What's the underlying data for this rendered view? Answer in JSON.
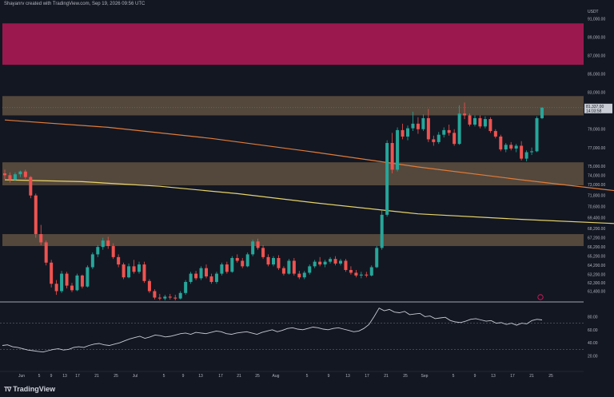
{
  "header": {
    "text": "Shayanrv created with TradingView.com, Sep 19, 2026 09:56 UTC"
  },
  "logo": {
    "mark": "T∇",
    "text": "TradingView"
  },
  "colors": {
    "bg": "#131722",
    "up": "#26a69a",
    "down": "#ef5350",
    "ma200": "#e07b39",
    "ma100": "#e6d36a",
    "rsi": "#c9ccd4",
    "supply": "#c2185b",
    "zone": "#6b5a45"
  },
  "chart_data": [
    {
      "type": "candlestick",
      "title": "",
      "currency_label": "USDT",
      "ylim": [
        60400,
        92000
      ],
      "y_ticks": [
        91000,
        89000,
        87000,
        85000,
        83000,
        79000,
        77000,
        75000,
        74000,
        73000,
        71800,
        70600,
        69400,
        68200,
        67200,
        66200,
        65200,
        64200,
        63200,
        62300,
        61400
      ],
      "y_tick_labels": [
        "91,000.00",
        "89,000.00",
        "87,000.00",
        "85,000.00",
        "83,000.00",
        "79,000.00",
        "77,000.00",
        "75,000.00",
        "74,000.00",
        "73,000.00",
        "71,800.00",
        "70,600.00",
        "69,400.00",
        "68,200.00",
        "67,200.00",
        "66,200.00",
        "65,200.00",
        "64,200.00",
        "63,200.00",
        "62,300.00",
        "61,400.00"
      ],
      "last_price_label": [
        "81,337.00",
        "14:03:58"
      ],
      "x_tick_labels": [
        "Jun",
        "5",
        "9",
        "13",
        "17",
        "21",
        "25",
        "Jul",
        "5",
        "9",
        "13",
        "17",
        "21",
        "25",
        "Aug",
        "5",
        "9",
        "13",
        "17",
        "21",
        "25",
        "Sep",
        "5",
        "9",
        "13",
        "17",
        "21",
        "25"
      ],
      "zones": [
        {
          "name": "supply zone",
          "y0": 86000,
          "y1": 90500
        },
        {
          "name": "resistance zone",
          "y0": 80500,
          "y1": 82600
        },
        {
          "name": "middle zone",
          "y0": 72900,
          "y1": 75400
        },
        {
          "name": "lower zone",
          "y0": 66300,
          "y1": 67600
        }
      ],
      "candles": [
        [
          74200,
          74600,
          73600,
          74000
        ],
        [
          74000,
          74300,
          73200,
          73500
        ],
        [
          73500,
          74300,
          73400,
          74100
        ],
        [
          74100,
          74500,
          73800,
          74400
        ],
        [
          74400,
          74600,
          73600,
          73800
        ],
        [
          73800,
          73900,
          71500,
          71800
        ],
        [
          71800,
          72000,
          67200,
          67600
        ],
        [
          67600,
          68600,
          66400,
          66700
        ],
        [
          66700,
          66900,
          64200,
          64500
        ],
        [
          64500,
          64800,
          61800,
          62200
        ],
        [
          62200,
          62600,
          61000,
          61400
        ],
        [
          61400,
          63600,
          61200,
          63300
        ],
        [
          63300,
          63500,
          61700,
          62000
        ],
        [
          62000,
          62300,
          61300,
          61500
        ],
        [
          61500,
          63300,
          61400,
          63100
        ],
        [
          63100,
          63200,
          61700,
          61900
        ],
        [
          61900,
          64200,
          61800,
          64000
        ],
        [
          64000,
          65600,
          63800,
          65400
        ],
        [
          65400,
          66400,
          65100,
          66200
        ],
        [
          66200,
          67200,
          65900,
          66900
        ],
        [
          66900,
          67300,
          66000,
          66300
        ],
        [
          66300,
          66600,
          64900,
          65100
        ],
        [
          65100,
          65400,
          64000,
          64300
        ],
        [
          64300,
          64500,
          62700,
          62900
        ],
        [
          62900,
          64400,
          62800,
          64100
        ],
        [
          64100,
          64800,
          63300,
          63500
        ],
        [
          63500,
          64600,
          63300,
          64300
        ],
        [
          64300,
          64600,
          62300,
          62500
        ],
        [
          62500,
          62700,
          61200,
          61400
        ],
        [
          61400,
          61600,
          60500,
          60700
        ],
        [
          60700,
          61100,
          60400,
          60600
        ],
        [
          60600,
          61000,
          60400,
          60800
        ],
        [
          60800,
          61100,
          60500,
          60700
        ],
        [
          60700,
          61000,
          60400,
          60600
        ],
        [
          60600,
          61400,
          60500,
          61200
        ],
        [
          61200,
          62600,
          61000,
          62400
        ],
        [
          62400,
          63500,
          62200,
          63300
        ],
        [
          63300,
          63600,
          62600,
          62800
        ],
        [
          62800,
          64100,
          62600,
          63900
        ],
        [
          63900,
          64300,
          62800,
          63000
        ],
        [
          63000,
          63300,
          62200,
          62400
        ],
        [
          62400,
          63500,
          62200,
          63300
        ],
        [
          63300,
          64500,
          63100,
          64300
        ],
        [
          64300,
          64600,
          63300,
          63500
        ],
        [
          63500,
          65200,
          63400,
          65000
        ],
        [
          65000,
          65400,
          64500,
          64700
        ],
        [
          64700,
          65000,
          63900,
          64100
        ],
        [
          64100,
          65600,
          64000,
          65400
        ],
        [
          65400,
          67000,
          65200,
          66800
        ],
        [
          66800,
          67100,
          65900,
          66100
        ],
        [
          66100,
          66400,
          64900,
          65100
        ],
        [
          65100,
          65400,
          64100,
          64300
        ],
        [
          64300,
          65200,
          64100,
          65000
        ],
        [
          65000,
          65300,
          63700,
          63900
        ],
        [
          63900,
          64100,
          63100,
          63300
        ],
        [
          63300,
          64900,
          63200,
          64700
        ],
        [
          64700,
          65000,
          63100,
          63300
        ],
        [
          63300,
          63600,
          62700,
          62900
        ],
        [
          62900,
          63600,
          62700,
          63400
        ],
        [
          63400,
          64300,
          63200,
          64100
        ],
        [
          64100,
          64800,
          63900,
          64600
        ],
        [
          64600,
          65100,
          64100,
          64300
        ],
        [
          64300,
          64800,
          64000,
          64600
        ],
        [
          64600,
          65100,
          64400,
          64900
        ],
        [
          64900,
          65200,
          64200,
          64400
        ],
        [
          64400,
          64900,
          64200,
          64700
        ],
        [
          64700,
          64900,
          63500,
          63700
        ],
        [
          63700,
          64100,
          63200,
          63400
        ],
        [
          63400,
          63700,
          62900,
          63100
        ],
        [
          63100,
          63500,
          62800,
          63200
        ],
        [
          63200,
          63500,
          62900,
          63100
        ],
        [
          63100,
          64200,
          63000,
          64000
        ],
        [
          64000,
          66300,
          63900,
          66100
        ],
        [
          66100,
          70200,
          65900,
          69700
        ],
        [
          69700,
          77800,
          69500,
          77500
        ],
        [
          77500,
          78600,
          74200,
          74600
        ],
        [
          74600,
          79200,
          74400,
          78900
        ],
        [
          78900,
          79600,
          77900,
          78200
        ],
        [
          78200,
          79400,
          77800,
          79100
        ],
        [
          79100,
          80900,
          78800,
          79600
        ],
        [
          79600,
          80300,
          78500,
          79000
        ],
        [
          79000,
          80600,
          78800,
          80200
        ],
        [
          80200,
          81200,
          77600,
          77900
        ],
        [
          77900,
          78300,
          77200,
          77600
        ],
        [
          77600,
          78700,
          77400,
          78400
        ],
        [
          78400,
          79200,
          78100,
          78900
        ],
        [
          78900,
          79500,
          78300,
          78600
        ],
        [
          78600,
          79000,
          77200,
          77400
        ],
        [
          77400,
          81600,
          77300,
          80700
        ],
        [
          80700,
          81900,
          80100,
          80500
        ],
        [
          80500,
          80700,
          79300,
          79500
        ],
        [
          79500,
          80500,
          79300,
          80200
        ],
        [
          80200,
          80500,
          79100,
          79300
        ],
        [
          79300,
          80400,
          79100,
          80100
        ],
        [
          80100,
          80300,
          78600,
          78800
        ],
        [
          78800,
          79000,
          78000,
          78200
        ],
        [
          78200,
          78400,
          76600,
          76800
        ],
        [
          76800,
          77500,
          76500,
          77300
        ],
        [
          77300,
          77600,
          76700,
          76900
        ],
        [
          76900,
          77400,
          76500,
          77200
        ],
        [
          77200,
          77700,
          75600,
          75800
        ],
        [
          75800,
          76700,
          75500,
          76500
        ],
        [
          76500,
          77000,
          76200,
          76600
        ],
        [
          76600,
          80400,
          76500,
          80200
        ],
        [
          80200,
          81400,
          80100,
          81337
        ]
      ],
      "ma200": [
        [
          0,
          80000
        ],
        [
          20,
          79200
        ],
        [
          40,
          78000
        ],
        [
          60,
          76500
        ],
        [
          80,
          74900
        ],
        [
          100,
          73500
        ],
        [
          120,
          72200
        ],
        [
          140,
          71100
        ],
        [
          160,
          70200
        ],
        [
          178,
          69600
        ],
        [
          188,
          69500
        ],
        [
          200,
          69700
        ],
        [
          215,
          70000
        ],
        [
          230,
          70300
        ],
        [
          242,
          70500
        ]
      ],
      "ma100": [
        [
          0,
          73500
        ],
        [
          15,
          73300
        ],
        [
          30,
          72800
        ],
        [
          45,
          72000
        ],
        [
          60,
          71000
        ],
        [
          80,
          69800
        ],
        [
          100,
          69200
        ],
        [
          120,
          68700
        ],
        [
          140,
          68100
        ],
        [
          160,
          67300
        ],
        [
          172,
          66800
        ],
        [
          180,
          66400
        ],
        [
          192,
          66300
        ],
        [
          205,
          66400
        ],
        [
          220,
          66800
        ],
        [
          232,
          67500
        ],
        [
          242,
          68200
        ]
      ]
    },
    {
      "type": "line",
      "title": "",
      "name": "RSI",
      "ylim": [
        0,
        100
      ],
      "y_ticks": [
        80,
        60,
        40,
        20
      ],
      "y_tick_labels": [
        "80.00",
        "60.00",
        "40.00",
        "20.00"
      ],
      "bands": [
        70,
        30
      ],
      "values": [
        36,
        37,
        34,
        33,
        31,
        29,
        28,
        27,
        26,
        28,
        30,
        31,
        29,
        30,
        33,
        34,
        33,
        36,
        38,
        39,
        37,
        36,
        38,
        40,
        43,
        46,
        48,
        50,
        47,
        49,
        52,
        51,
        49,
        50,
        52,
        54,
        55,
        53,
        56,
        55,
        54,
        56,
        58,
        57,
        54,
        53,
        55,
        56,
        57,
        55,
        53,
        56,
        58,
        60,
        57,
        59,
        62,
        63,
        61,
        60,
        62,
        64,
        63,
        61,
        60,
        62,
        63,
        61,
        59,
        57,
        58,
        62,
        68,
        80,
        93,
        89,
        91,
        87,
        86,
        88,
        83,
        84,
        85,
        80,
        81,
        77,
        78,
        79,
        74,
        72,
        71,
        73,
        76,
        77,
        75,
        73,
        74,
        70,
        71,
        68,
        70,
        67,
        70,
        69,
        74,
        76,
        75
      ]
    }
  ]
}
